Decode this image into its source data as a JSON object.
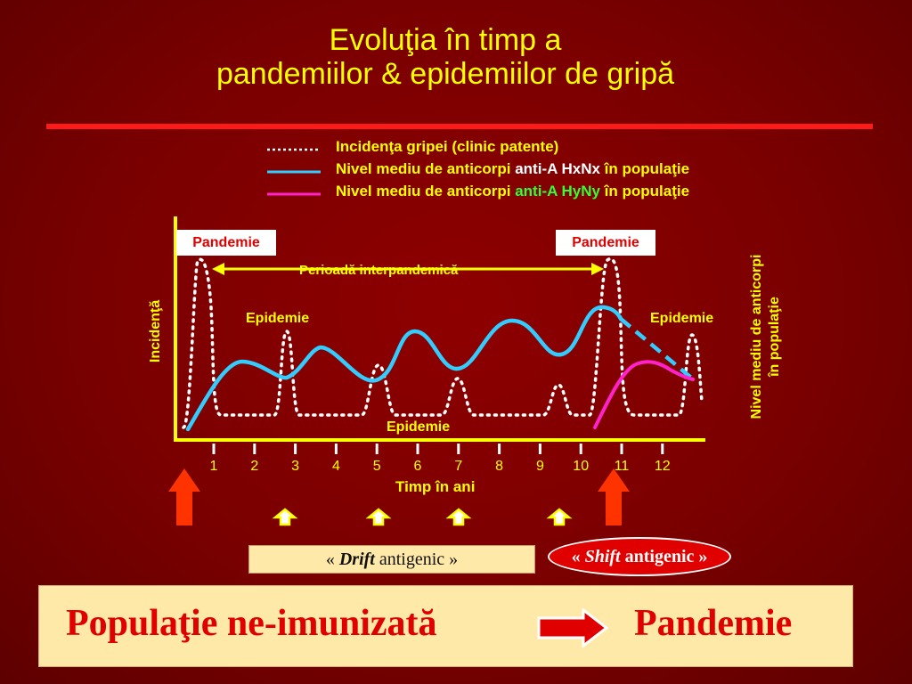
{
  "title": {
    "line1": "Evoluţia în timp a",
    "line2": "pandemiilor & epidemiilor de gripă"
  },
  "legend": {
    "items": [
      {
        "style": "dotted",
        "color": "#ffffff",
        "text": "Incidenţa gripei (clinic patente)"
      },
      {
        "style": "solid",
        "color": "#33ccff",
        "prefix": "Nivel mediu de anticorpi ",
        "highlight": "anti-A HxNx",
        "suffix": " în populaţie"
      },
      {
        "style": "solid",
        "color": "#ff22cc",
        "prefix": "Nivel mediu de anticorpi ",
        "highlight": "anti-A ",
        "highlight2": "HyNy",
        "suffix": " în populaţie"
      }
    ]
  },
  "chart": {
    "ylabel_left": "Incidenţă",
    "ylabel_right_line1": "Nivel mediu  de anticorpi",
    "ylabel_right_line2": "în populaţie",
    "xlabel": "Timp în ani",
    "pandemic_label_1": "Pandemie",
    "pandemic_label_2": "Pandemie",
    "interpandemic_label": "Perioadă interpandemică",
    "epidemic_label_1": "Epidemie",
    "epidemic_label_2": "Epidemie",
    "epidemic_label_3": "Epidemie"
  },
  "chart_data": {
    "type": "line",
    "x": [
      1,
      2,
      3,
      4,
      5,
      6,
      7,
      8,
      9,
      10,
      11,
      12
    ],
    "xlabel": "Timp în ani",
    "ylabel": "Incidenţă",
    "y2label": "Nivel mediu  de anticorpi în populaţie",
    "series": [
      {
        "name": "Incidenţa gripei (clinic patente)",
        "style": "dotted",
        "color": "#ffffff"
      },
      {
        "name": "Nivel mediu de anticorpi anti-A HxNx în populaţie",
        "style": "solid",
        "color": "#33ccff"
      },
      {
        "name": "Nivel mediu de anticorpi anti-A HyNy în populaţie",
        "style": "solid",
        "color": "#ff22cc"
      }
    ],
    "colors": {
      "axis": "#ffff00",
      "incidence": "#ffffff",
      "hxnx": "#33ccff",
      "hyny": "#ff22cc"
    }
  },
  "annotations": {
    "drift": {
      "open": "« ",
      "emph": "Drift",
      "rest": " antigenic »"
    },
    "shift": {
      "open": "« ",
      "emph": "Shift",
      "rest": " antigenic »"
    }
  },
  "conclusion": {
    "left": "Populaţie ne-imunizată",
    "right": "Pandemie"
  },
  "colors": {
    "background": "#7a0000",
    "title": "#ffff00",
    "accent": "#ff1a1a",
    "box": "#ffe9a8",
    "text_red": "#e00000"
  }
}
